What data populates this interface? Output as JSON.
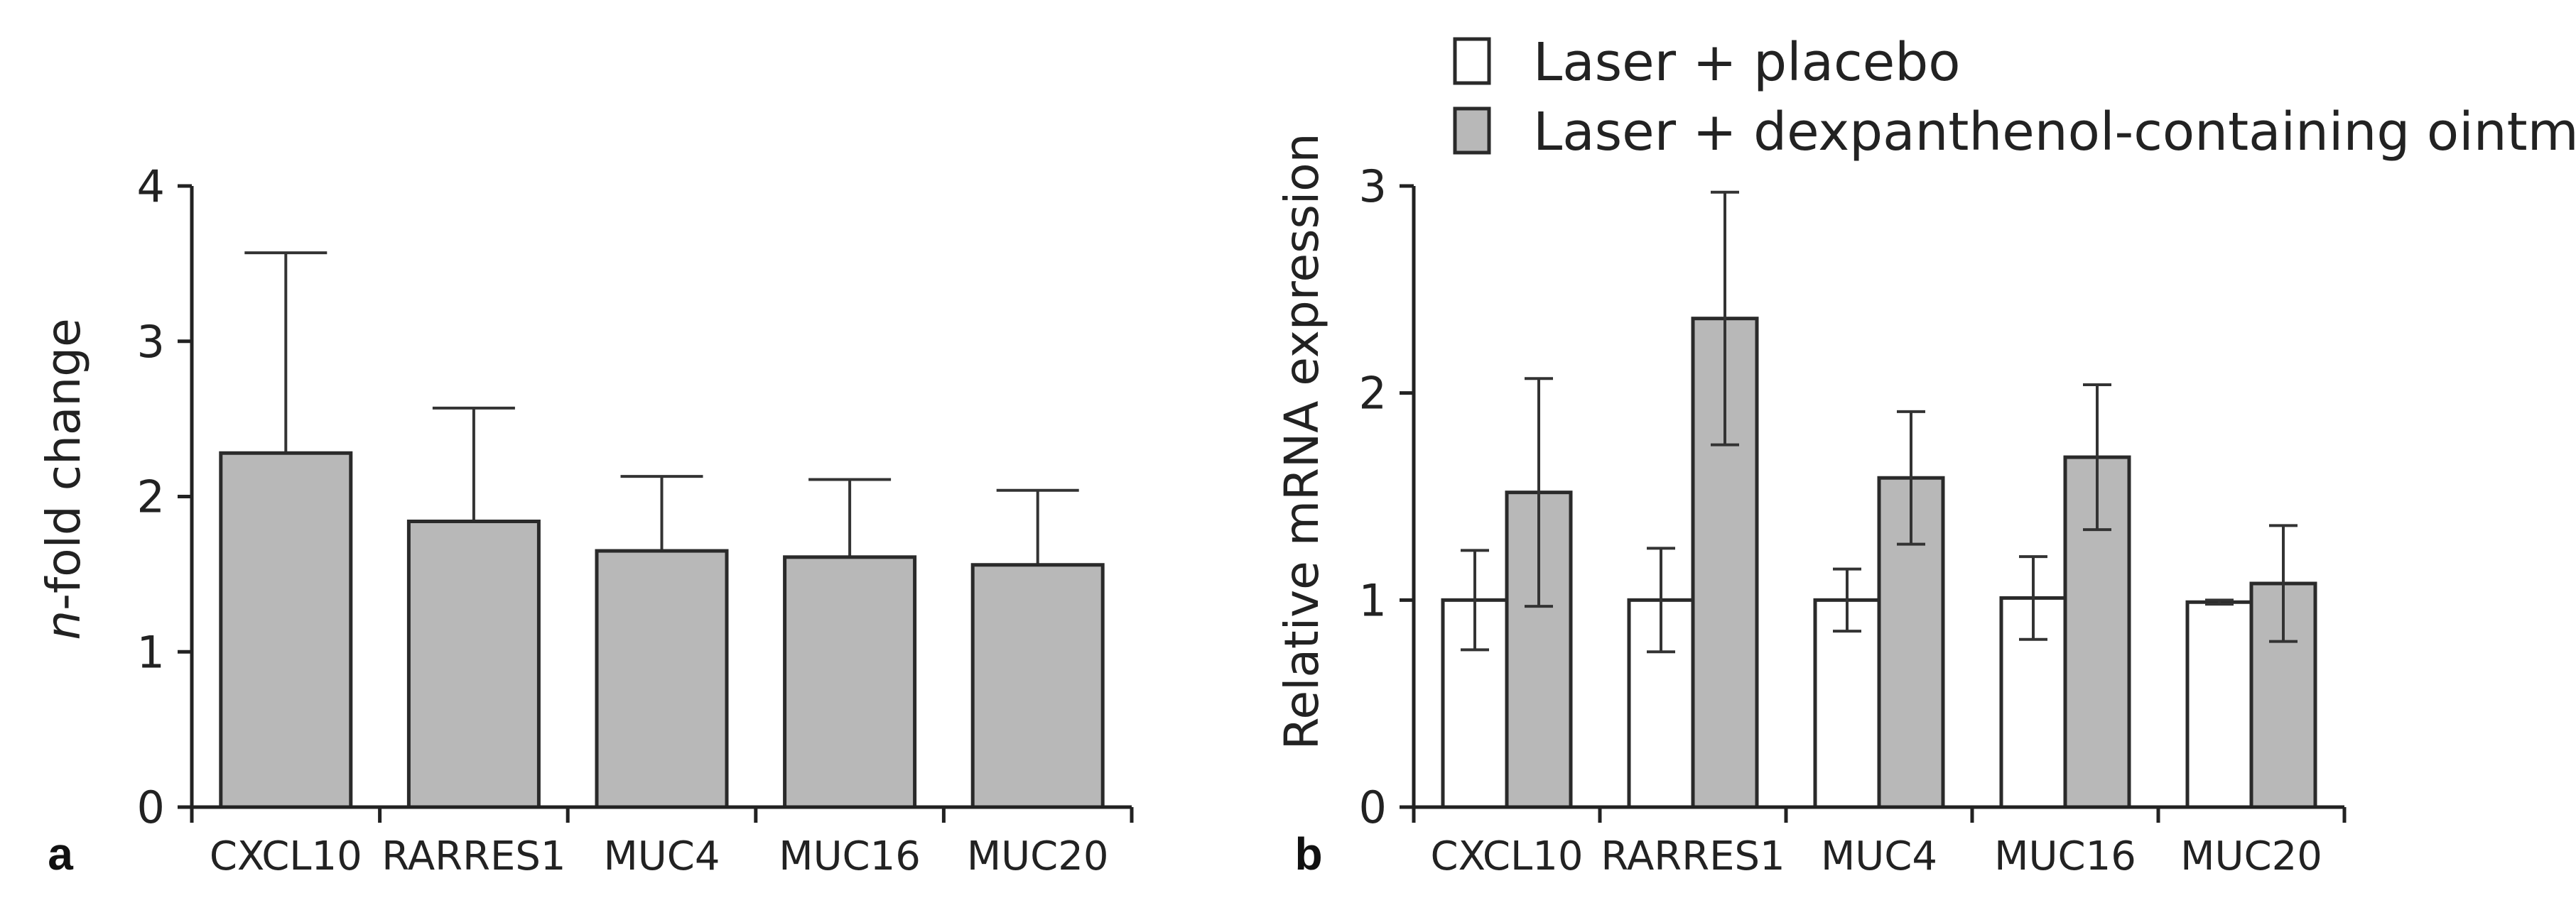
{
  "colors": {
    "placebo": "#ffffff",
    "dexpanthenol": "#b8b8b8",
    "single": "#b8b8b8",
    "axis": "#222222"
  },
  "chart_data": [
    {
      "panel": "a",
      "type": "bar",
      "categories": [
        "CXCL10",
        "RARRES1",
        "MUC4",
        "MUC16",
        "MUC20"
      ],
      "values": [
        2.28,
        1.84,
        1.65,
        1.61,
        1.56
      ],
      "errors": [
        1.29,
        0.73,
        0.48,
        0.5,
        0.48
      ],
      "title": "",
      "xlabel": "",
      "ylabel_italic": "n",
      "ylabel_rest": "-fold change",
      "ylim": [
        0,
        4
      ],
      "yticks": [
        "0",
        "1",
        "2",
        "3",
        "4"
      ],
      "grid": false
    },
    {
      "panel": "b",
      "type": "bar",
      "categories": [
        "CXCL10",
        "RARRES1",
        "MUC4",
        "MUC16",
        "MUC20"
      ],
      "series": [
        {
          "name": "Laser + placebo",
          "values": [
            1.0,
            1.0,
            1.0,
            1.01,
            0.99
          ],
          "errors": [
            0.24,
            0.25,
            0.15,
            0.2,
            0.01
          ]
        },
        {
          "name": "Laser + dexpanthenol-containing ointment",
          "values": [
            1.52,
            2.36,
            1.59,
            1.69,
            1.08
          ],
          "errors": [
            0.55,
            0.61,
            0.32,
            0.35,
            0.28
          ]
        }
      ],
      "title": "",
      "xlabel": "",
      "ylabel": "Relative mRNA expression",
      "ylim": [
        0,
        3
      ],
      "yticks": [
        "0",
        "1",
        "2",
        "3"
      ],
      "legend": "top",
      "grid": false
    }
  ]
}
